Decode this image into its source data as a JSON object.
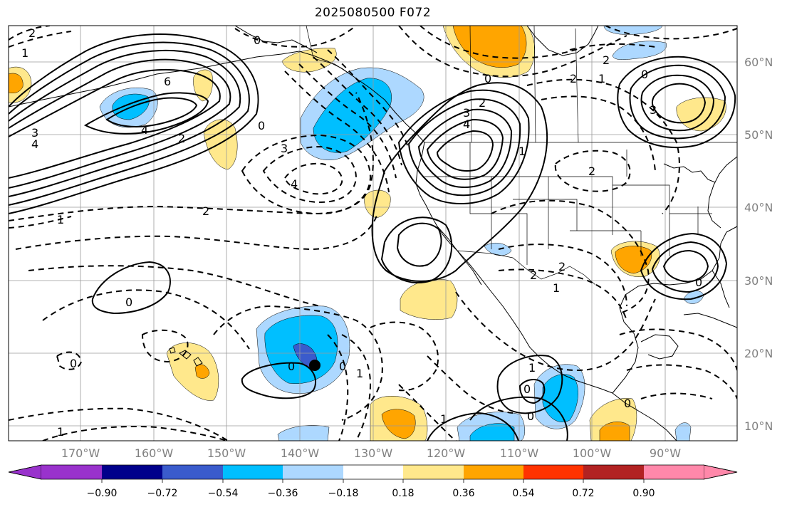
{
  "title": "2025080500 F072",
  "lon_labels": [
    "170°W",
    "160°W",
    "150°W",
    "140°W",
    "130°W",
    "120°W",
    "110°W",
    "100°W",
    "90°W"
  ],
  "lat_labels": [
    "60°N",
    "50°N",
    "40°N",
    "30°N",
    "20°N",
    "10°N"
  ],
  "colorbar": {
    "colors": [
      "#9932cc",
      "#00008b",
      "#3a5bcc",
      "#00bfff",
      "#add8ff",
      "#ffffff",
      "#ffe88c",
      "#ffa500",
      "#ff3300",
      "#b22222",
      "#ff88aa"
    ],
    "tick_labels": [
      "−0.90",
      "−0.72",
      "−0.54",
      "−0.36",
      "−0.18",
      "0.18",
      "0.36",
      "0.54",
      "0.72",
      "0.90"
    ]
  },
  "contour_labels": [
    {
      "text": "2"
    },
    {
      "text": "1"
    },
    {
      "text": "6"
    },
    {
      "text": "3"
    },
    {
      "text": "4"
    },
    {
      "text": "4"
    },
    {
      "text": "2"
    },
    {
      "text": "0"
    },
    {
      "text": "0"
    },
    {
      "text": "3"
    },
    {
      "text": "4"
    },
    {
      "text": "2"
    },
    {
      "text": "1"
    },
    {
      "text": "0"
    },
    {
      "text": "0"
    },
    {
      "text": "0"
    },
    {
      "text": "1"
    },
    {
      "text": "0"
    },
    {
      "text": "1"
    },
    {
      "text": "1"
    },
    {
      "text": "0"
    },
    {
      "text": "0"
    },
    {
      "text": "1"
    },
    {
      "text": "0"
    },
    {
      "text": "2"
    },
    {
      "text": "3"
    },
    {
      "text": "4"
    },
    {
      "text": "1"
    },
    {
      "text": "2"
    },
    {
      "text": "2"
    },
    {
      "text": "1"
    },
    {
      "text": "0"
    },
    {
      "text": "2"
    },
    {
      "text": "3"
    },
    {
      "text": "2"
    },
    {
      "text": "2"
    },
    {
      "text": "1"
    },
    {
      "text": "0"
    },
    {
      "text": "0"
    }
  ]
}
